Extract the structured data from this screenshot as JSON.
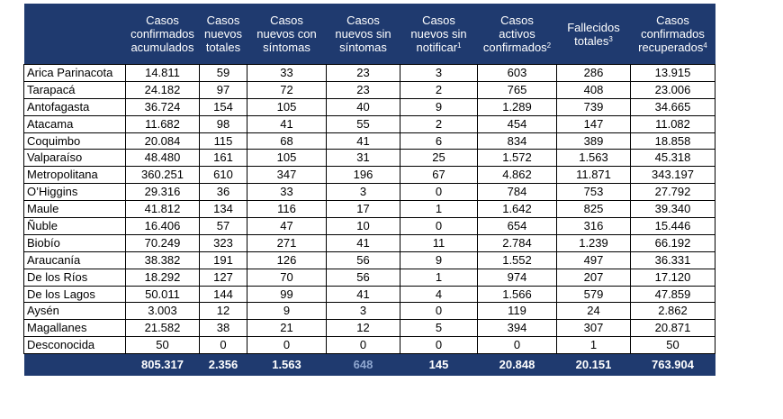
{
  "headers": [
    {
      "lines": [
        ""
      ],
      "sup": ""
    },
    {
      "lines": [
        "Casos",
        "confirmados",
        "acumulados"
      ],
      "sup": ""
    },
    {
      "lines": [
        "Casos",
        "nuevos",
        "totales"
      ],
      "sup": ""
    },
    {
      "lines": [
        "Casos",
        "nuevos con",
        "síntomas"
      ],
      "sup": ""
    },
    {
      "lines": [
        "Casos",
        "nuevos sin",
        "síntomas"
      ],
      "sup": ""
    },
    {
      "lines": [
        "Casos",
        "nuevos sin",
        "notificar"
      ],
      "sup": "1"
    },
    {
      "lines": [
        "Casos",
        "activos",
        "confirmados"
      ],
      "sup": "2"
    },
    {
      "lines": [
        "Fallecidos",
        "totales"
      ],
      "sup": "3"
    },
    {
      "lines": [
        "Casos",
        "confirmados",
        "recuperados"
      ],
      "sup": "4"
    }
  ],
  "rows": [
    [
      "Arica Parinacota",
      "14.811",
      "59",
      "33",
      "23",
      "3",
      "603",
      "286",
      "13.915"
    ],
    [
      "Tarapacá",
      "24.182",
      "97",
      "72",
      "23",
      "2",
      "765",
      "408",
      "23.006"
    ],
    [
      "Antofagasta",
      "36.724",
      "154",
      "105",
      "40",
      "9",
      "1.289",
      "739",
      "34.665"
    ],
    [
      "Atacama",
      "11.682",
      "98",
      "41",
      "55",
      "2",
      "454",
      "147",
      "11.082"
    ],
    [
      "Coquimbo",
      "20.084",
      "115",
      "68",
      "41",
      "6",
      "834",
      "389",
      "18.858"
    ],
    [
      "Valparaíso",
      "48.480",
      "161",
      "105",
      "31",
      "25",
      "1.572",
      "1.563",
      "45.318"
    ],
    [
      "Metropolitana",
      "360.251",
      "610",
      "347",
      "196",
      "67",
      "4.862",
      "11.871",
      "343.197"
    ],
    [
      "O’Higgins",
      "29.316",
      "36",
      "33",
      "3",
      "0",
      "784",
      "753",
      "27.792"
    ],
    [
      "Maule",
      "41.812",
      "134",
      "116",
      "17",
      "1",
      "1.642",
      "825",
      "39.340"
    ],
    [
      "Ñuble",
      "16.406",
      "57",
      "47",
      "10",
      "0",
      "654",
      "316",
      "15.446"
    ],
    [
      "Biobío",
      "70.249",
      "323",
      "271",
      "41",
      "11",
      "2.784",
      "1.239",
      "66.192"
    ],
    [
      "Araucanía",
      "38.382",
      "191",
      "126",
      "56",
      "9",
      "1.552",
      "497",
      "36.331"
    ],
    [
      "De los Ríos",
      "18.292",
      "127",
      "70",
      "56",
      "1",
      "974",
      "207",
      "17.120"
    ],
    [
      "De los Lagos",
      "50.011",
      "144",
      "99",
      "41",
      "4",
      "1.566",
      "579",
      "47.859"
    ],
    [
      "Aysén",
      "3.003",
      "12",
      "9",
      "3",
      "0",
      "119",
      "24",
      "2.862"
    ],
    [
      "Magallanes",
      "21.582",
      "38",
      "21",
      "12",
      "5",
      "394",
      "307",
      "20.871"
    ],
    [
      "Desconocida",
      "50",
      "0",
      "0",
      "0",
      "0",
      "0",
      "1",
      "50"
    ]
  ],
  "totals": [
    "",
    "805.317",
    "2.356",
    "1.563",
    "648",
    "145",
    "20.848",
    "20.151",
    "763.904"
  ],
  "colors": {
    "header_bg": "#1f3a6f",
    "header_text": "#ffffff",
    "muted_total": "#8ea6cf"
  }
}
